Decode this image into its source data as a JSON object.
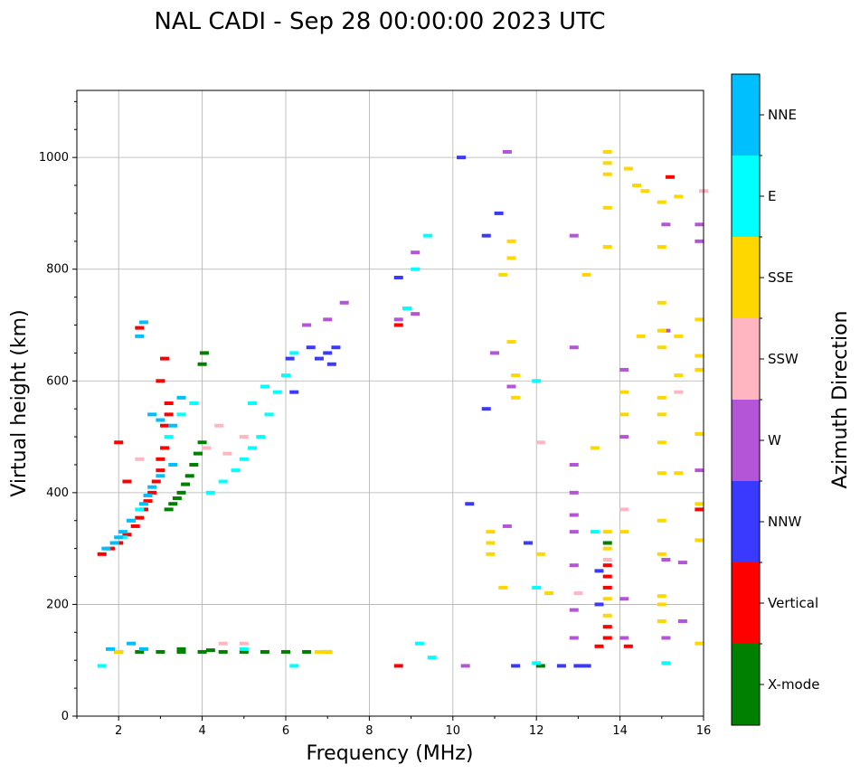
{
  "chart_data": {
    "type": "scatter",
    "title": "NAL CADI - Sep 28 00:00:00 2023 UTC",
    "xlabel": "Frequency (MHz)",
    "ylabel": "Virtual height (km)",
    "xlim": [
      1,
      16
    ],
    "ylim": [
      0,
      1120
    ],
    "xticks": [
      2,
      4,
      6,
      8,
      10,
      12,
      14,
      16
    ],
    "yticks": [
      0,
      200,
      400,
      600,
      800,
      1000
    ],
    "grid": true,
    "colorbar": {
      "title": "Azimuth Direction",
      "categories": [
        {
          "name": "X-mode",
          "color": "#008000"
        },
        {
          "name": "Vertical",
          "color": "#ff0000"
        },
        {
          "name": "NNW",
          "color": "#3a3aff"
        },
        {
          "name": "W",
          "color": "#b455d8"
        },
        {
          "name": "SSW",
          "color": "#ffb6c1"
        },
        {
          "name": "SSE",
          "color": "#ffd700"
        },
        {
          "name": "E",
          "color": "#00ffff"
        },
        {
          "name": "NNE",
          "color": "#00bfff"
        }
      ]
    },
    "series": [
      {
        "name": "X-mode",
        "points": [
          [
            3.2,
            370
          ],
          [
            3.3,
            380
          ],
          [
            3.4,
            390
          ],
          [
            3.5,
            400
          ],
          [
            3.6,
            415
          ],
          [
            3.7,
            430
          ],
          [
            3.8,
            450
          ],
          [
            3.9,
            470
          ],
          [
            4.0,
            490
          ],
          [
            4.0,
            630
          ],
          [
            4.05,
            650
          ],
          [
            2.0,
            115
          ],
          [
            2.5,
            115
          ],
          [
            3.0,
            115
          ],
          [
            3.5,
            115
          ],
          [
            4.0,
            115
          ],
          [
            4.5,
            115
          ],
          [
            5.0,
            115
          ],
          [
            5.5,
            115
          ],
          [
            6.0,
            115
          ],
          [
            6.5,
            115
          ],
          [
            7.0,
            115
          ],
          [
            3.5,
            120
          ],
          [
            4.2,
            118
          ],
          [
            12.1,
            90
          ],
          [
            13.7,
            310
          ]
        ]
      },
      {
        "name": "Vertical",
        "points": [
          [
            1.6,
            290
          ],
          [
            1.8,
            300
          ],
          [
            2.0,
            310
          ],
          [
            2.2,
            325
          ],
          [
            2.4,
            340
          ],
          [
            2.5,
            355
          ],
          [
            2.6,
            370
          ],
          [
            2.7,
            385
          ],
          [
            2.8,
            400
          ],
          [
            2.9,
            420
          ],
          [
            3.0,
            440
          ],
          [
            3.0,
            460
          ],
          [
            3.1,
            480
          ],
          [
            3.1,
            520
          ],
          [
            3.2,
            540
          ],
          [
            3.2,
            560
          ],
          [
            3.0,
            600
          ],
          [
            3.1,
            640
          ],
          [
            2.2,
            420
          ],
          [
            2.0,
            490
          ],
          [
            2.5,
            695
          ],
          [
            8.7,
            700
          ],
          [
            8.7,
            90
          ],
          [
            13.7,
            270
          ],
          [
            13.7,
            250
          ],
          [
            13.7,
            230
          ],
          [
            13.7,
            160
          ],
          [
            13.7,
            140
          ],
          [
            13.5,
            125
          ],
          [
            14.2,
            125
          ],
          [
            15.2,
            965
          ],
          [
            15.9,
            370
          ]
        ]
      },
      {
        "name": "NNW",
        "points": [
          [
            6.1,
            640
          ],
          [
            6.2,
            580
          ],
          [
            6.6,
            660
          ],
          [
            6.8,
            640
          ],
          [
            7.0,
            650
          ],
          [
            7.1,
            630
          ],
          [
            7.2,
            660
          ],
          [
            8.7,
            785
          ],
          [
            10.2,
            1000
          ],
          [
            10.4,
            380
          ],
          [
            10.8,
            860
          ],
          [
            11.1,
            900
          ],
          [
            10.8,
            550
          ],
          [
            11.5,
            90
          ],
          [
            12.6,
            90
          ],
          [
            13.0,
            90
          ],
          [
            13.2,
            90
          ],
          [
            13.5,
            200
          ],
          [
            13.5,
            260
          ],
          [
            11.8,
            310
          ]
        ]
      },
      {
        "name": "W",
        "points": [
          [
            6.5,
            700
          ],
          [
            7.0,
            710
          ],
          [
            7.4,
            740
          ],
          [
            8.7,
            710
          ],
          [
            9.1,
            720
          ],
          [
            9.1,
            830
          ],
          [
            11.3,
            1010
          ],
          [
            11.0,
            650
          ],
          [
            11.4,
            590
          ],
          [
            12.9,
            860
          ],
          [
            12.9,
            660
          ],
          [
            12.9,
            450
          ],
          [
            12.9,
            400
          ],
          [
            12.9,
            360
          ],
          [
            12.9,
            330
          ],
          [
            12.9,
            270
          ],
          [
            12.9,
            190
          ],
          [
            12.9,
            140
          ],
          [
            14.1,
            620
          ],
          [
            14.1,
            500
          ],
          [
            14.1,
            210
          ],
          [
            14.1,
            140
          ],
          [
            15.1,
            880
          ],
          [
            15.1,
            690
          ],
          [
            15.1,
            280
          ],
          [
            15.1,
            140
          ],
          [
            15.9,
            880
          ],
          [
            15.9,
            850
          ],
          [
            15.9,
            440
          ],
          [
            15.5,
            275
          ],
          [
            15.5,
            170
          ],
          [
            10.3,
            90
          ],
          [
            11.3,
            340
          ]
        ]
      },
      {
        "name": "SSW",
        "points": [
          [
            4.1,
            480
          ],
          [
            4.4,
            520
          ],
          [
            4.6,
            470
          ],
          [
            5.0,
            500
          ],
          [
            2.5,
            460
          ],
          [
            4.5,
            130
          ],
          [
            5.0,
            130
          ],
          [
            13.0,
            220
          ],
          [
            13.7,
            280
          ],
          [
            14.1,
            370
          ],
          [
            15.4,
            580
          ],
          [
            16.0,
            940
          ],
          [
            12.1,
            490
          ]
        ]
      },
      {
        "name": "SSE",
        "points": [
          [
            6.8,
            115
          ],
          [
            7.0,
            115
          ],
          [
            2.0,
            115
          ],
          [
            10.9,
            330
          ],
          [
            10.9,
            310
          ],
          [
            10.9,
            290
          ],
          [
            11.2,
            790
          ],
          [
            11.4,
            850
          ],
          [
            11.4,
            820
          ],
          [
            11.4,
            670
          ],
          [
            11.5,
            610
          ],
          [
            11.5,
            570
          ],
          [
            11.2,
            230
          ],
          [
            12.3,
            220
          ],
          [
            13.2,
            790
          ],
          [
            13.4,
            480
          ],
          [
            13.7,
            1010
          ],
          [
            13.7,
            990
          ],
          [
            13.7,
            970
          ],
          [
            13.7,
            910
          ],
          [
            13.7,
            840
          ],
          [
            13.7,
            330
          ],
          [
            13.7,
            300
          ],
          [
            13.7,
            210
          ],
          [
            13.7,
            180
          ],
          [
            14.2,
            980
          ],
          [
            14.4,
            950
          ],
          [
            14.6,
            940
          ],
          [
            15.0,
            920
          ],
          [
            15.0,
            840
          ],
          [
            15.0,
            740
          ],
          [
            15.0,
            690
          ],
          [
            15.0,
            660
          ],
          [
            15.0,
            570
          ],
          [
            15.0,
            540
          ],
          [
            15.0,
            490
          ],
          [
            15.0,
            435
          ],
          [
            15.0,
            350
          ],
          [
            15.0,
            290
          ],
          [
            15.0,
            215
          ],
          [
            15.0,
            200
          ],
          [
            15.0,
            170
          ],
          [
            15.4,
            930
          ],
          [
            15.4,
            680
          ],
          [
            15.4,
            610
          ],
          [
            15.4,
            435
          ],
          [
            15.9,
            710
          ],
          [
            15.9,
            645
          ],
          [
            15.9,
            620
          ],
          [
            15.9,
            505
          ],
          [
            15.9,
            380
          ],
          [
            15.9,
            315
          ],
          [
            15.9,
            130
          ],
          [
            12.1,
            290
          ],
          [
            14.5,
            680
          ],
          [
            14.1,
            580
          ],
          [
            14.1,
            540
          ],
          [
            14.1,
            330
          ]
        ]
      },
      {
        "name": "E",
        "points": [
          [
            2.1,
            320
          ],
          [
            2.3,
            350
          ],
          [
            2.5,
            370
          ],
          [
            3.2,
            500
          ],
          [
            3.5,
            540
          ],
          [
            3.8,
            560
          ],
          [
            4.2,
            400
          ],
          [
            4.5,
            420
          ],
          [
            4.8,
            440
          ],
          [
            5.0,
            460
          ],
          [
            5.2,
            480
          ],
          [
            5.4,
            500
          ],
          [
            5.6,
            540
          ],
          [
            5.8,
            580
          ],
          [
            6.0,
            610
          ],
          [
            6.2,
            650
          ],
          [
            5.2,
            560
          ],
          [
            5.5,
            590
          ],
          [
            9.1,
            800
          ],
          [
            9.4,
            860
          ],
          [
            9.2,
            130
          ],
          [
            9.5,
            105
          ],
          [
            12.0,
            600
          ],
          [
            12.0,
            230
          ],
          [
            12.0,
            95
          ],
          [
            13.4,
            330
          ],
          [
            15.1,
            95
          ],
          [
            1.6,
            90
          ],
          [
            6.2,
            90
          ],
          [
            8.9,
            730
          ],
          [
            5.0,
            120
          ]
        ]
      },
      {
        "name": "NNE",
        "points": [
          [
            1.9,
            310
          ],
          [
            2.0,
            320
          ],
          [
            2.1,
            330
          ],
          [
            2.3,
            350
          ],
          [
            2.6,
            380
          ],
          [
            2.7,
            395
          ],
          [
            2.8,
            410
          ],
          [
            3.0,
            430
          ],
          [
            3.3,
            450
          ],
          [
            3.3,
            520
          ],
          [
            3.5,
            570
          ],
          [
            3.0,
            530
          ],
          [
            2.8,
            540
          ],
          [
            2.5,
            680
          ],
          [
            2.6,
            705
          ],
          [
            1.7,
            300
          ],
          [
            1.8,
            120
          ],
          [
            2.3,
            130
          ],
          [
            2.6,
            120
          ]
        ]
      }
    ]
  }
}
